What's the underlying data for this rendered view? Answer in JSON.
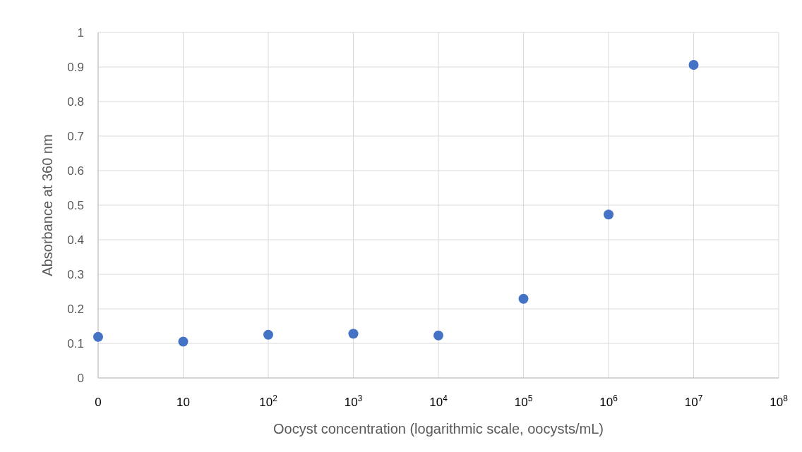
{
  "chart_data": {
    "type": "scatter",
    "xlabel": "Oocyst concentration (logarithmic scale, oocysts/mL)",
    "ylabel": "Absorbance at 360 nm",
    "categories": [
      "0",
      "10",
      "10$^{2}$",
      "10$^{3}$",
      "10$^{4}$",
      "10$^{5}$",
      "10$^{6}$",
      "10$^{7}$",
      "10$^{8}$"
    ],
    "series": [
      {
        "color": "#4472c4",
        "values": [
          0.119,
          0.105,
          0.125,
          0.128,
          0.123,
          0.229,
          0.473,
          0.906,
          null
        ]
      }
    ],
    "ylim": [
      0,
      1
    ],
    "yticks": [
      0,
      0.1,
      0.2,
      0.3,
      0.4,
      0.5,
      0.6,
      0.7,
      0.8,
      0.9,
      1
    ],
    "grid": true,
    "marker": "circle"
  }
}
